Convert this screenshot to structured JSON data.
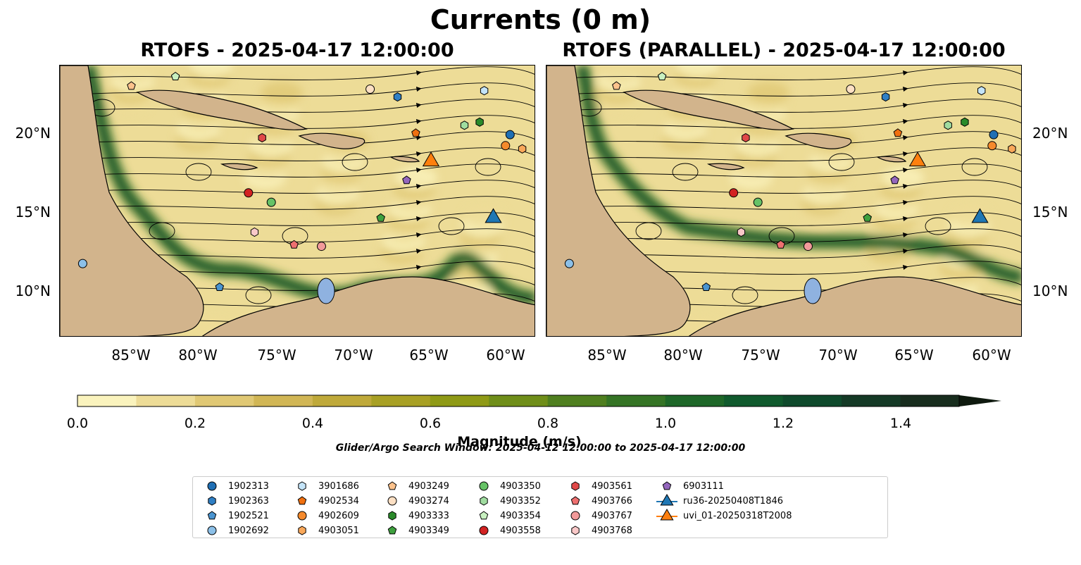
{
  "figure": {
    "suptitle": "Currents (0 m)",
    "left_title": "RTOFS - 2025-04-17 12:00:00",
    "right_title": "RTOFS (PARALLEL) - 2025-04-17 12:00:00",
    "x_ticks": [
      "85°W",
      "80°W",
      "75°W",
      "70°W",
      "65°W",
      "60°W"
    ],
    "y_ticks": [
      "20°N",
      "15°N",
      "10°N"
    ],
    "colorbar": {
      "label": "Magnitude (m/s)",
      "ticks": [
        "0.0",
        "0.2",
        "0.4",
        "0.6",
        "0.8",
        "1.0",
        "1.2",
        "1.4"
      ],
      "range": [
        0.0,
        1.5
      ],
      "colors": [
        "#faf3bd",
        "#eddc97",
        "#e0c874",
        "#d1b655",
        "#bfa93a",
        "#a8a024",
        "#8f9a16",
        "#6f8e19",
        "#4f7f1f",
        "#357425",
        "#1e6728",
        "#105a2d",
        "#0f4a2c",
        "#153a26",
        "#182d1e"
      ]
    },
    "search_window": "Glider/Argo Search Window: 2025-04-12 12:00:00 to 2025-04-17 12:00:00",
    "land_color": "#d2b48c",
    "lake_color": "#8fb2e0"
  },
  "legend": [
    {
      "label": "1902313",
      "marker": "circle",
      "color": "#1f6fb4"
    },
    {
      "label": "1902363",
      "marker": "hexagon",
      "color": "#2f7fc4"
    },
    {
      "label": "1902521",
      "marker": "pentagon",
      "color": "#4a94d0"
    },
    {
      "label": "1902692",
      "marker": "circle",
      "color": "#8cc0e8"
    },
    {
      "label": "3901686",
      "marker": "hexagon",
      "color": "#c4e4f8"
    },
    {
      "label": "4902534",
      "marker": "pentagon",
      "color": "#f07010"
    },
    {
      "label": "4902609",
      "marker": "circle",
      "color": "#f58a2c"
    },
    {
      "label": "4903051",
      "marker": "hexagon",
      "color": "#f9a85a"
    },
    {
      "label": "4903249",
      "marker": "pentagon",
      "color": "#fcc28c"
    },
    {
      "label": "4903274",
      "marker": "circle",
      "color": "#fde0c4"
    },
    {
      "label": "4903333",
      "marker": "hexagon",
      "color": "#2a8a2a"
    },
    {
      "label": "4903349",
      "marker": "pentagon",
      "color": "#3ea03e"
    },
    {
      "label": "4903350",
      "marker": "circle",
      "color": "#66c266"
    },
    {
      "label": "4903352",
      "marker": "hexagon",
      "color": "#a0dca0"
    },
    {
      "label": "4903354",
      "marker": "pentagon",
      "color": "#c8f0c0"
    },
    {
      "label": "4903558",
      "marker": "circle",
      "color": "#d22222"
    },
    {
      "label": "4903561",
      "marker": "hexagon",
      "color": "#e04848"
    },
    {
      "label": "4903766",
      "marker": "pentagon",
      "color": "#ee7070"
    },
    {
      "label": "4903767",
      "marker": "circle",
      "color": "#f29a9a"
    },
    {
      "label": "4903768",
      "marker": "hexagon",
      "color": "#f9c8c8"
    },
    {
      "label": "6903111",
      "marker": "pentagon",
      "color": "#9467bd"
    },
    {
      "label": "ru36-20250408T1846",
      "marker": "triangle-line",
      "color": "#1f77b4"
    },
    {
      "label": "uvi_01-20250318T2008",
      "marker": "triangle-line",
      "color": "#ff7f0e"
    }
  ],
  "left_points": [
    {
      "id": "1902313",
      "lon": -59.7,
      "lat": 19.9
    },
    {
      "id": "1902363",
      "lon": -67.1,
      "lat": 22.3
    },
    {
      "id": "1902521",
      "lon": -78.8,
      "lat": 10.2
    },
    {
      "id": "1902692",
      "lon": -87.8,
      "lat": 11.7
    },
    {
      "id": "3901686",
      "lon": -61.4,
      "lat": 22.7
    },
    {
      "id": "4902534",
      "lon": -65.9,
      "lat": 20.0
    },
    {
      "id": "4902609",
      "lon": -60.0,
      "lat": 19.2
    },
    {
      "id": "4903051",
      "lon": -58.9,
      "lat": 19.0
    },
    {
      "id": "4903249",
      "lon": -84.6,
      "lat": 23.0
    },
    {
      "id": "4903274",
      "lon": -68.9,
      "lat": 22.8
    },
    {
      "id": "4903333",
      "lon": -61.7,
      "lat": 20.7
    },
    {
      "id": "4903349",
      "lon": -68.2,
      "lat": 14.6
    },
    {
      "id": "4903350",
      "lon": -75.4,
      "lat": 15.6
    },
    {
      "id": "4903352",
      "lon": -62.7,
      "lat": 20.5
    },
    {
      "id": "4903354",
      "lon": -81.7,
      "lat": 23.6
    },
    {
      "id": "4903558",
      "lon": -76.9,
      "lat": 16.2
    },
    {
      "id": "4903561",
      "lon": -76.0,
      "lat": 19.7
    },
    {
      "id": "4903766",
      "lon": -73.9,
      "lat": 12.9
    },
    {
      "id": "4903767",
      "lon": -72.1,
      "lat": 12.8
    },
    {
      "id": "4903768",
      "lon": -76.5,
      "lat": 13.7
    },
    {
      "id": "6903111",
      "lon": -66.5,
      "lat": 17.0
    },
    {
      "id": "ru36-20250408T1846",
      "lon": -60.8,
      "lat": 14.6
    },
    {
      "id": "uvi_01-20250318T2008",
      "lon": -64.9,
      "lat": 18.2
    }
  ],
  "right_points": [
    {
      "id": "1902313",
      "lon": -59.9,
      "lat": 19.9
    },
    {
      "id": "1902363",
      "lon": -67.0,
      "lat": 22.3
    },
    {
      "id": "1902521",
      "lon": -78.8,
      "lat": 10.2
    },
    {
      "id": "1902692",
      "lon": -87.8,
      "lat": 11.7
    },
    {
      "id": "3901686",
      "lon": -60.7,
      "lat": 22.7
    },
    {
      "id": "4902534",
      "lon": -66.2,
      "lat": 20.0
    },
    {
      "id": "4902609",
      "lon": -60.0,
      "lat": 19.2
    },
    {
      "id": "4903051",
      "lon": -58.7,
      "lat": 19.0
    },
    {
      "id": "4903249",
      "lon": -84.7,
      "lat": 23.0
    },
    {
      "id": "4903274",
      "lon": -69.3,
      "lat": 22.8
    },
    {
      "id": "4903333",
      "lon": -61.8,
      "lat": 20.7
    },
    {
      "id": "4903349",
      "lon": -68.2,
      "lat": 14.6
    },
    {
      "id": "4903350",
      "lon": -75.4,
      "lat": 15.6
    },
    {
      "id": "4903352",
      "lon": -62.9,
      "lat": 20.5
    },
    {
      "id": "4903354",
      "lon": -81.7,
      "lat": 23.6
    },
    {
      "id": "4903558",
      "lon": -77.0,
      "lat": 16.2
    },
    {
      "id": "4903561",
      "lon": -76.2,
      "lat": 19.7
    },
    {
      "id": "4903766",
      "lon": -73.9,
      "lat": 12.9
    },
    {
      "id": "4903767",
      "lon": -72.1,
      "lat": 12.8
    },
    {
      "id": "4903768",
      "lon": -76.5,
      "lat": 13.7
    },
    {
      "id": "6903111",
      "lon": -66.4,
      "lat": 17.0
    },
    {
      "id": "ru36-20250408T1846",
      "lon": -60.8,
      "lat": 14.6
    },
    {
      "id": "uvi_01-20250318T2008",
      "lon": -64.9,
      "lat": 18.2
    }
  ]
}
